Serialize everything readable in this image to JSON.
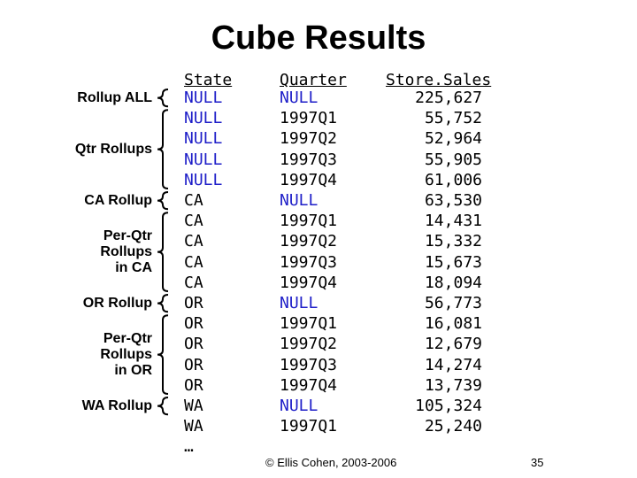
{
  "title": "Cube Results",
  "headers": {
    "state": "State",
    "quarter": "Quarter",
    "sales": "Store.Sales"
  },
  "colors": {
    "null_highlight": "#1e1ec8",
    "text": "#000000"
  },
  "rows": [
    {
      "state": "NULL",
      "quarter": "NULL",
      "sales": "225,627"
    },
    {
      "state": "NULL",
      "quarter": "1997Q1",
      "sales": "55,752"
    },
    {
      "state": "NULL",
      "quarter": "1997Q2",
      "sales": "52,964"
    },
    {
      "state": "NULL",
      "quarter": "1997Q3",
      "sales": "55,905"
    },
    {
      "state": "NULL",
      "quarter": "1997Q4",
      "sales": "61,006"
    },
    {
      "state": "CA",
      "quarter": "NULL",
      "sales": "63,530"
    },
    {
      "state": "CA",
      "quarter": "1997Q1",
      "sales": "14,431"
    },
    {
      "state": "CA",
      "quarter": "1997Q2",
      "sales": "15,332"
    },
    {
      "state": "CA",
      "quarter": "1997Q3",
      "sales": "15,673"
    },
    {
      "state": "CA",
      "quarter": "1997Q4",
      "sales": "18,094"
    },
    {
      "state": "OR",
      "quarter": "NULL",
      "sales": "56,773"
    },
    {
      "state": "OR",
      "quarter": "1997Q1",
      "sales": "16,081"
    },
    {
      "state": "OR",
      "quarter": "1997Q2",
      "sales": "12,679"
    },
    {
      "state": "OR",
      "quarter": "1997Q3",
      "sales": "14,274"
    },
    {
      "state": "OR",
      "quarter": "1997Q4",
      "sales": "13,739"
    },
    {
      "state": "WA",
      "quarter": "NULL",
      "sales": "105,324"
    },
    {
      "state": "WA",
      "quarter": "1997Q1",
      "sales": "25,240"
    },
    {
      "state": "…",
      "quarter": "",
      "sales": ""
    }
  ],
  "annotations": [
    {
      "label": "Rollup ALL",
      "rows": [
        0,
        0
      ]
    },
    {
      "label": "Qtr Rollups",
      "rows": [
        1,
        4
      ]
    },
    {
      "label": "CA Rollup",
      "rows": [
        5,
        5
      ]
    },
    {
      "label": "Per-Qtr Rollups in CA",
      "rows": [
        6,
        9
      ]
    },
    {
      "label": "OR Rollup",
      "rows": [
        10,
        10
      ]
    },
    {
      "label": "Per-Qtr Rollups in OR",
      "rows": [
        11,
        14
      ]
    },
    {
      "label": "WA Rollup",
      "rows": [
        15,
        15
      ]
    }
  ],
  "footer": "© Ellis Cohen, 2003-2006",
  "page_number": "35"
}
